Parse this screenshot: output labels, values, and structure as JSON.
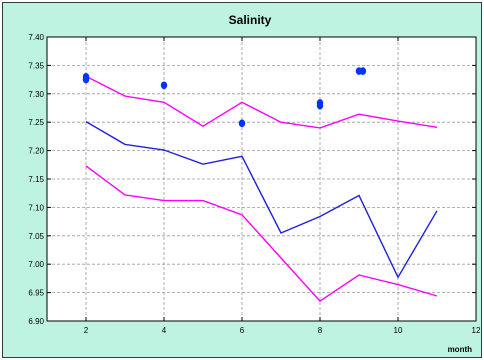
{
  "chart_data": {
    "type": "line",
    "title": "Salinity",
    "xlabel": "month",
    "ylabel": "",
    "xlim": [
      1,
      12
    ],
    "ylim": [
      6.9,
      7.4
    ],
    "xticks": [
      "2",
      "4",
      "6",
      "8",
      "10",
      "12"
    ],
    "yticks": [
      "6.90",
      "6.95",
      "7.00",
      "7.05",
      "7.10",
      "7.15",
      "7.20",
      "7.25",
      "7.30",
      "7.35",
      "7.40"
    ],
    "grid": true,
    "series": [
      {
        "color": "#ff00ff",
        "style": "line",
        "x": [
          2,
          3,
          4,
          5,
          6,
          7,
          8,
          9,
          10,
          11
        ],
        "values": [
          7.331,
          7.296,
          7.285,
          7.243,
          7.285,
          7.25,
          7.24,
          7.264,
          7.252,
          7.241
        ]
      },
      {
        "color": "#1f1fe0",
        "style": "line",
        "x": [
          2,
          3,
          4,
          5,
          6,
          7,
          8,
          9,
          10,
          11
        ],
        "values": [
          7.251,
          7.211,
          7.201,
          7.176,
          7.19,
          7.055,
          7.084,
          7.121,
          6.977,
          7.094
        ]
      },
      {
        "color": "#ff00ff",
        "style": "line",
        "x": [
          2,
          3,
          4,
          5,
          6,
          7,
          8,
          9,
          10,
          11
        ],
        "values": [
          7.173,
          7.122,
          7.112,
          7.112,
          7.087,
          7.011,
          6.935,
          6.981,
          6.964,
          6.944
        ]
      },
      {
        "color": "#0033ff",
        "style": "points",
        "x": [
          2,
          2,
          4,
          6,
          8,
          8,
          9,
          9.1
        ],
        "values": [
          7.33,
          7.325,
          7.315,
          7.248,
          7.284,
          7.279,
          7.34,
          7.34
        ]
      }
    ]
  }
}
